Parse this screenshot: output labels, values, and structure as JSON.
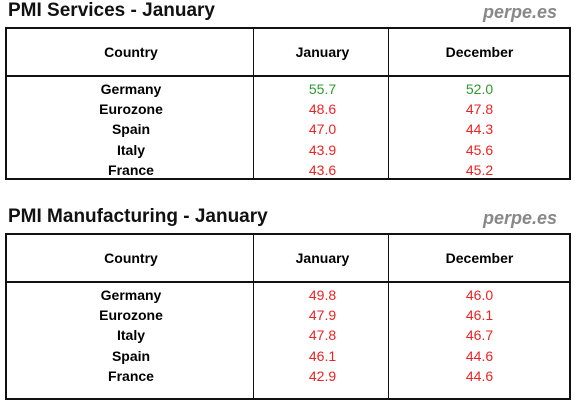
{
  "sections": [
    {
      "title": "PMI Services - January",
      "source": "perpe.es",
      "table": {
        "headers": [
          "Country",
          "January",
          "December"
        ],
        "rows": [
          [
            "Germany",
            "55.7",
            "52.0"
          ],
          [
            "Eurozone",
            "48.6",
            "47.8"
          ],
          [
            "Spain",
            "47.0",
            "44.3"
          ],
          [
            "Italy",
            "43.9",
            "45.6"
          ],
          [
            "France",
            "43.6",
            "45.2"
          ]
        ],
        "value_colors": [
          [
            "#2e9a2e",
            "#2e9a2e"
          ],
          [
            "#ee2222",
            "#ee2222"
          ],
          [
            "#ee2222",
            "#ee2222"
          ],
          [
            "#ee2222",
            "#ee2222"
          ],
          [
            "#ee2222",
            "#ee2222"
          ]
        ]
      }
    },
    {
      "title": "PMI Manufacturing - January",
      "source": "perpe.es",
      "table": {
        "headers": [
          "Country",
          "January",
          "December"
        ],
        "rows": [
          [
            "Germany",
            "49.8",
            "46.0"
          ],
          [
            "Eurozone",
            "47.9",
            "46.1"
          ],
          [
            "Italy",
            "47.8",
            "46.7"
          ],
          [
            "Spain",
            "46.1",
            "44.6"
          ],
          [
            "France",
            "42.9",
            "44.6"
          ]
        ],
        "value_colors": [
          [
            "#ee2222",
            "#ee2222"
          ],
          [
            "#ee2222",
            "#ee2222"
          ],
          [
            "#ee2222",
            "#ee2222"
          ],
          [
            "#ee2222",
            "#ee2222"
          ],
          [
            "#ee2222",
            "#ee2222"
          ]
        ]
      }
    }
  ]
}
